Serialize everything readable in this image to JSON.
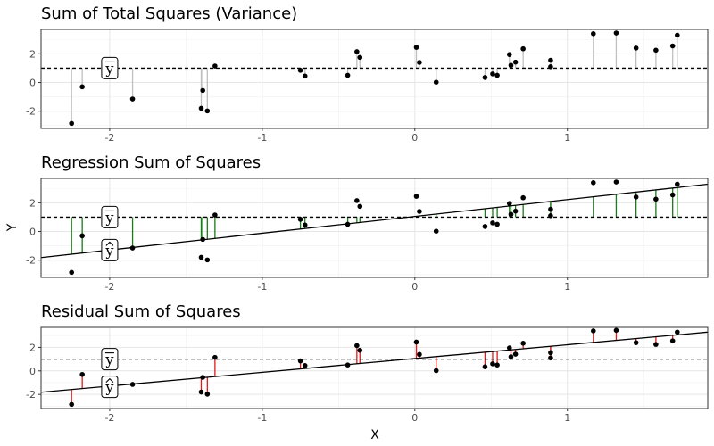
{
  "chart_data": {
    "type": "scatter",
    "xlabel": "X",
    "ylabel": "Y",
    "xlim": [
      -2.45,
      1.92
    ],
    "ylim": [
      -3.2,
      3.7
    ],
    "x_ticks": [
      -2,
      -1,
      0,
      1
    ],
    "y_ticks": [
      -2,
      0,
      2
    ],
    "grid": true,
    "mean_y": 1.0,
    "regression": {
      "intercept": 1.05,
      "slope": 1.17
    },
    "labels": {
      "ybar": "y",
      "yhat": "y"
    },
    "points": [
      {
        "x": -2.25,
        "y": -2.85
      },
      {
        "x": -2.18,
        "y": -0.3
      },
      {
        "x": -1.85,
        "y": -1.15
      },
      {
        "x": -1.4,
        "y": -1.8
      },
      {
        "x": -1.39,
        "y": -0.55
      },
      {
        "x": -1.36,
        "y": -1.98
      },
      {
        "x": -1.31,
        "y": 1.15
      },
      {
        "x": -0.75,
        "y": 0.85
      },
      {
        "x": -0.72,
        "y": 0.45
      },
      {
        "x": -0.44,
        "y": 0.5
      },
      {
        "x": -0.38,
        "y": 2.15
      },
      {
        "x": -0.36,
        "y": 1.75
      },
      {
        "x": 0.01,
        "y": 2.45
      },
      {
        "x": 0.03,
        "y": 1.4
      },
      {
        "x": 0.14,
        "y": 0.02
      },
      {
        "x": 0.46,
        "y": 0.35
      },
      {
        "x": 0.51,
        "y": 0.6
      },
      {
        "x": 0.54,
        "y": 0.5
      },
      {
        "x": 0.62,
        "y": 1.95
      },
      {
        "x": 0.63,
        "y": 1.2
      },
      {
        "x": 0.66,
        "y": 1.42
      },
      {
        "x": 0.71,
        "y": 2.35
      },
      {
        "x": 0.89,
        "y": 1.55
      },
      {
        "x": 0.89,
        "y": 1.1
      },
      {
        "x": 1.17,
        "y": 3.4
      },
      {
        "x": 1.32,
        "y": 3.45
      },
      {
        "x": 1.45,
        "y": 2.4
      },
      {
        "x": 1.58,
        "y": 2.25
      },
      {
        "x": 1.69,
        "y": 2.55
      },
      {
        "x": 1.72,
        "y": 3.3
      }
    ],
    "panels": [
      {
        "title": "Sum of Total Squares (Variance)",
        "segments": "total",
        "segment_color": "#bfbfbf",
        "show_line": false
      },
      {
        "title": "Regression Sum of Squares",
        "segments": "regression",
        "segment_color": "#1b7a1b",
        "show_line": true
      },
      {
        "title": "Residual Sum of Squares",
        "segments": "residual",
        "segment_color": "#e01b1b",
        "show_line": true
      }
    ]
  }
}
